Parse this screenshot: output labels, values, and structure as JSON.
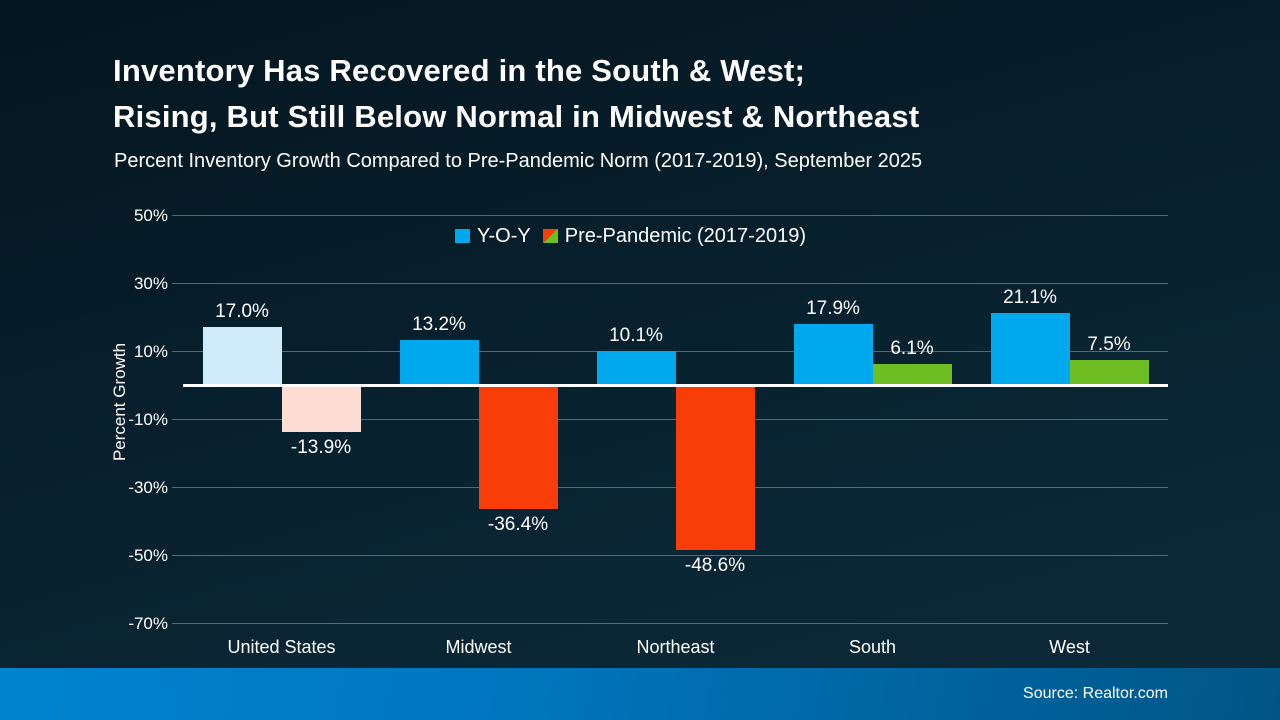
{
  "header": {
    "title_line1": "Inventory Has Recovered in the South & West;",
    "title_line2": "Rising, But Still Below Normal in Midwest & Northeast",
    "subtitle": "Percent Inventory Growth Compared to Pre-Pandemic Norm (2017-2019), September 2025"
  },
  "footer": {
    "source": "Source: Realtor.com"
  },
  "legend": [
    {
      "label": "Y-O-Y",
      "swatch": "solid",
      "colors": [
        "#00a9ee"
      ]
    },
    {
      "label": "Pre-Pandemic (2017-2019)",
      "swatch": "split-diagonal",
      "colors": [
        "#f93d08",
        "#6ebe23"
      ]
    }
  ],
  "chart_data": {
    "type": "bar",
    "title": "",
    "xlabel": "",
    "ylabel": "Percent Growth",
    "categories": [
      "United States",
      "Midwest",
      "Northeast",
      "South",
      "West"
    ],
    "series": [
      {
        "name": "Y-O-Y",
        "values": [
          17.0,
          13.2,
          10.1,
          17.9,
          21.1
        ]
      },
      {
        "name": "Pre-Pandemic (2017-2019)",
        "values": [
          -13.9,
          -36.4,
          -48.6,
          6.1,
          7.5
        ]
      }
    ],
    "value_labels": [
      [
        "17.0%",
        "13.2%",
        "10.1%",
        "17.9%",
        "21.1%"
      ],
      [
        "-13.9%",
        "-36.4%",
        "-48.6%",
        "6.1%",
        "7.5%"
      ]
    ],
    "bar_colors": [
      [
        "#cfeaf8",
        "#00a9ee",
        "#00a9ee",
        "#00a9ee",
        "#00a9ee"
      ],
      [
        "#fcdcd3",
        "#f93d08",
        "#f93d08",
        "#6ebe23",
        "#6ebe23"
      ]
    ],
    "ylim": [
      -70,
      50
    ],
    "ytick_step": 20,
    "yticks": [
      "50%",
      "30%",
      "10%",
      "-10%",
      "-30%",
      "-50%",
      "-70%"
    ],
    "grid": true,
    "legend_position": "top-center",
    "colors": {
      "gridline": "#96a3ac",
      "zero_line": "#ffffff",
      "background_top": "#04161f",
      "background_bottom": "#0d2a39",
      "footer_left": "#0083ce",
      "footer_right": "#015586"
    }
  }
}
